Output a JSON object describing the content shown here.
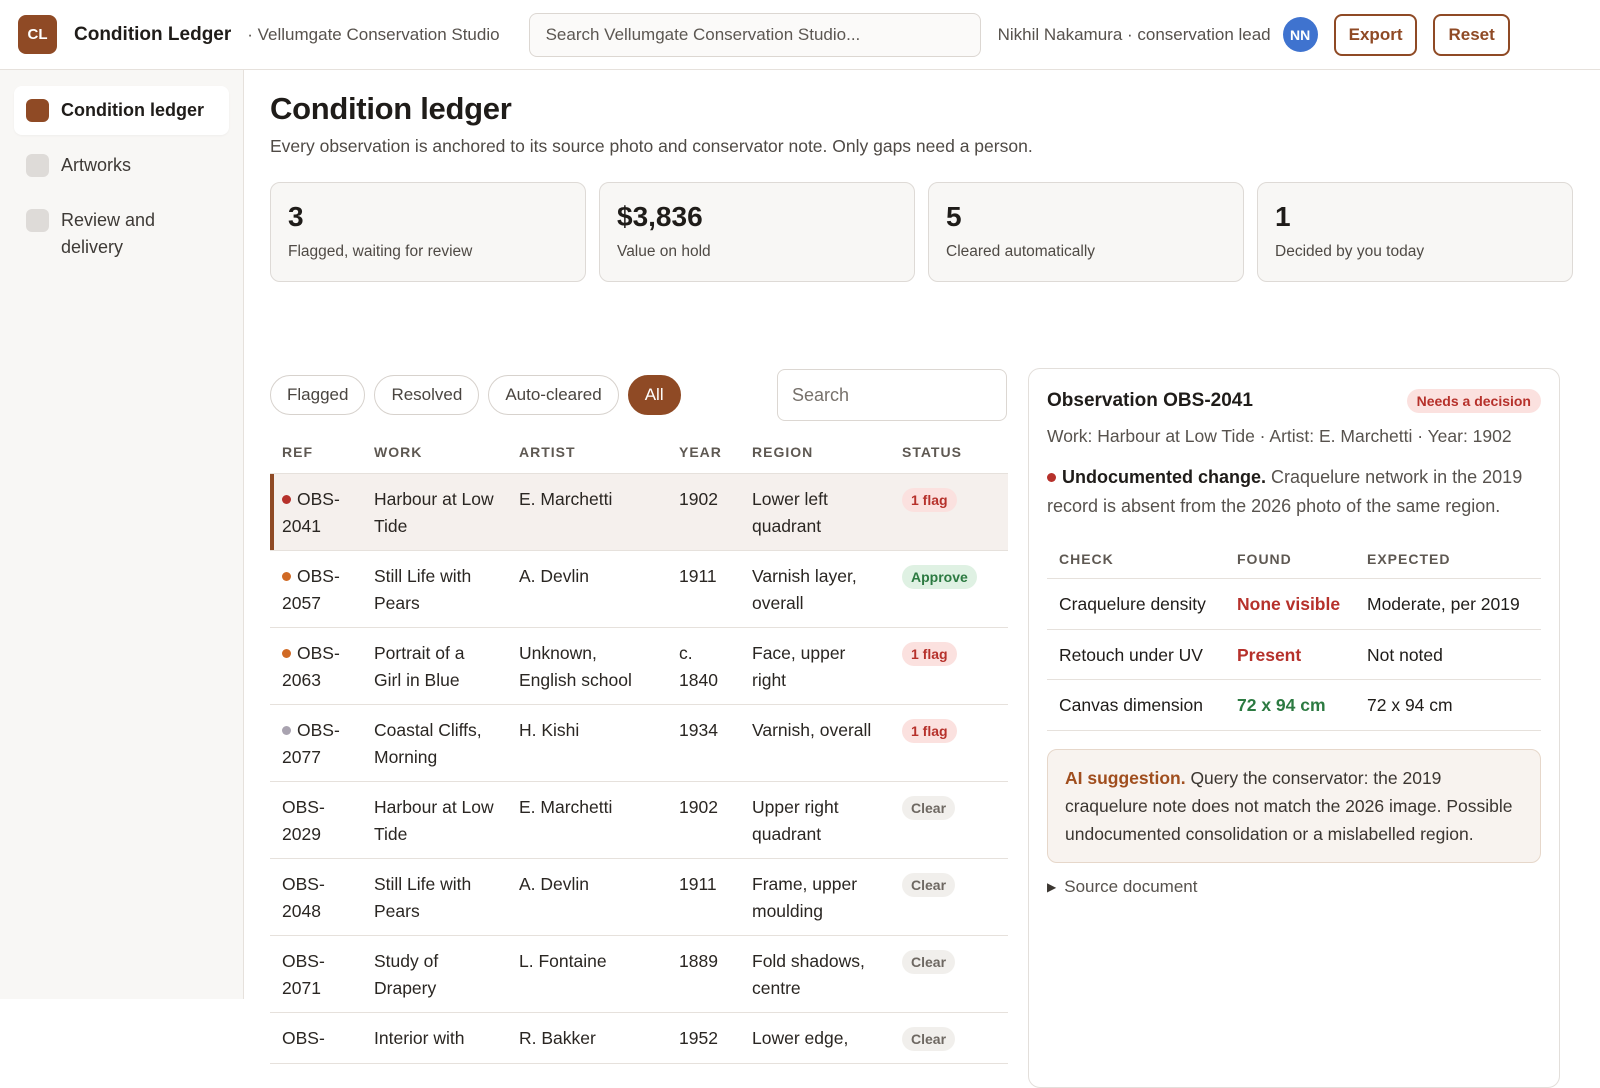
{
  "header": {
    "logo_text": "CL",
    "app_title": "Condition Ledger",
    "studio": "· Vellumgate Conservation Studio",
    "search_placeholder": "Search Vellumgate Conservation Studio...",
    "user": "Nikhil Nakamura · conservation lead",
    "avatar": "NN",
    "export_label": "Export",
    "reset_label": "Reset"
  },
  "sidebar": {
    "items": [
      {
        "label": "Condition ledger",
        "active": true
      },
      {
        "label": "Artworks",
        "active": false
      },
      {
        "label": "Review and delivery",
        "active": false
      }
    ]
  },
  "main": {
    "title": "Condition ledger",
    "subtitle": "Every observation is anchored to its source photo and conservator note. Only gaps need a person.",
    "stats": [
      {
        "value": "3",
        "label": "Flagged, waiting for review"
      },
      {
        "value": "$3,836",
        "label": "Value on hold"
      },
      {
        "value": "5",
        "label": "Cleared automatically"
      },
      {
        "value": "1",
        "label": "Decided by you today"
      }
    ],
    "filters": [
      "Flagged",
      "Resolved",
      "Auto-cleared",
      "All"
    ],
    "active_filter": "All",
    "table_search_placeholder": "Search",
    "columns": [
      "REF",
      "WORK",
      "ARTIST",
      "YEAR",
      "REGION",
      "STATUS"
    ],
    "rows": [
      {
        "ref": "OBS-2041",
        "work": "Harbour at Low Tide",
        "artist": "E. Marchetti",
        "year": "1902",
        "region": "Lower left quadrant",
        "status": "1 flag",
        "status_type": "flag",
        "severity": "red",
        "selected": true
      },
      {
        "ref": "OBS-2057",
        "work": "Still Life with Pears",
        "artist": "A. Devlin",
        "year": "1911",
        "region": "Varnish layer, overall",
        "status": "Approve",
        "status_type": "approve",
        "severity": "orange"
      },
      {
        "ref": "OBS-2063",
        "work": "Portrait of a Girl in Blue",
        "artist": "Unknown, English school",
        "year": "c. 1840",
        "region": "Face, upper right",
        "status": "1 flag",
        "status_type": "flag",
        "severity": "orange"
      },
      {
        "ref": "OBS-2077",
        "work": "Coastal Cliffs, Morning",
        "artist": "H. Kishi",
        "year": "1934",
        "region": "Varnish, overall",
        "status": "1 flag",
        "status_type": "flag",
        "severity": "grey"
      },
      {
        "ref": "OBS-2029",
        "work": "Harbour at Low Tide",
        "artist": "E. Marchetti",
        "year": "1902",
        "region": "Upper right quadrant",
        "status": "Clear",
        "status_type": "clear",
        "severity": ""
      },
      {
        "ref": "OBS-2048",
        "work": "Still Life with Pears",
        "artist": "A. Devlin",
        "year": "1911",
        "region": "Frame, upper moulding",
        "status": "Clear",
        "status_type": "clear",
        "severity": ""
      },
      {
        "ref": "OBS-2071",
        "work": "Study of Drapery",
        "artist": "L. Fontaine",
        "year": "1889",
        "region": "Fold shadows, centre",
        "status": "Clear",
        "status_type": "clear",
        "severity": ""
      },
      {
        "ref": "OBS-",
        "work": "Interior with",
        "artist": "R. Bakker",
        "year": "1952",
        "region": "Lower edge,",
        "status": "Clear",
        "status_type": "clear",
        "severity": ""
      }
    ]
  },
  "detail": {
    "title": "Observation OBS-2041",
    "badge": "Needs a decision",
    "meta": "Work: Harbour at Low Tide · Artist: E. Marchetti · Year: 1902",
    "change_title": "Undocumented change.",
    "change_text": "Craquelure network in the 2019 record is absent from the 2026 photo of the same region.",
    "check_columns": [
      "CHECK",
      "FOUND",
      "EXPECTED"
    ],
    "checks": [
      {
        "check": "Craquelure density",
        "found": "None visible",
        "found_type": "bad",
        "expected": "Moderate, per 2019"
      },
      {
        "check": "Retouch under UV",
        "found": "Present",
        "found_type": "bad",
        "expected": "Not noted"
      },
      {
        "check": "Canvas dimension",
        "found": "72 x 94 cm",
        "found_type": "ok",
        "expected": "72 x 94 cm"
      }
    ],
    "ai_label": "AI suggestion.",
    "ai_text": "Query the conservator: the 2019 craquelure note does not match the 2026 image. Possible undocumented consolidation or a mislabelled region.",
    "source_label": "Source document"
  }
}
